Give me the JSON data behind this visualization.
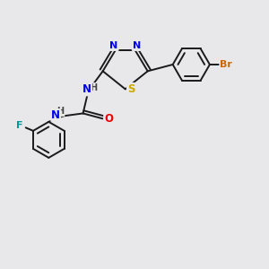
{
  "bg_color": "#e8e8ea",
  "bond_color": "#1a1a1a",
  "bond_width": 1.4,
  "atom_colors": {
    "N": "#0000ee",
    "S": "#ccaa00",
    "O": "#ee0000",
    "F": "#009999",
    "Br": "#cc6600",
    "C": "#1a1a1a",
    "H": "#444444"
  }
}
